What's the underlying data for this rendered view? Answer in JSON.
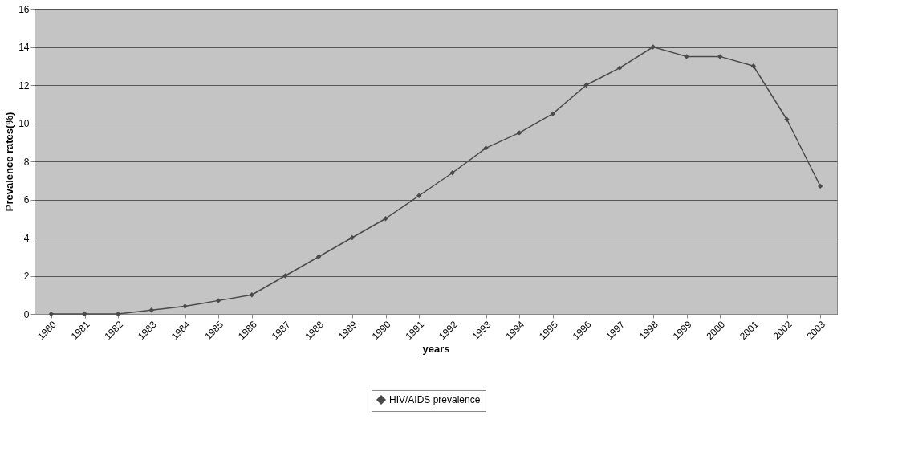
{
  "chart_data": {
    "type": "line",
    "xlabel": "years",
    "ylabel": "Prevalence rates(%)",
    "categories": [
      "1980",
      "1981",
      "1982",
      "1983",
      "1984",
      "1985",
      "1986",
      "1987",
      "1988",
      "1989",
      "1990",
      "1991",
      "1992",
      "1993",
      "1994",
      "1995",
      "1996",
      "1997",
      "1998",
      "1999",
      "2000",
      "2001",
      "2002",
      "2003"
    ],
    "series": [
      {
        "name": "HIV/AIDS prevalence",
        "color": "#4a4a4a",
        "values": [
          0,
          0,
          0,
          0.2,
          0.4,
          0.7,
          1.0,
          2.0,
          3.0,
          4.0,
          5.0,
          6.2,
          7.4,
          8.7,
          9.5,
          10.5,
          12.0,
          12.9,
          14.0,
          13.5,
          13.5,
          13.0,
          10.2,
          6.7
        ]
      }
    ],
    "ylim": [
      0,
      16
    ],
    "yticks": [
      0,
      2,
      4,
      6,
      8,
      10,
      12,
      14,
      16
    ],
    "grid": "y",
    "legend": "bottom",
    "marker": "diamond",
    "line_style": "solid"
  }
}
